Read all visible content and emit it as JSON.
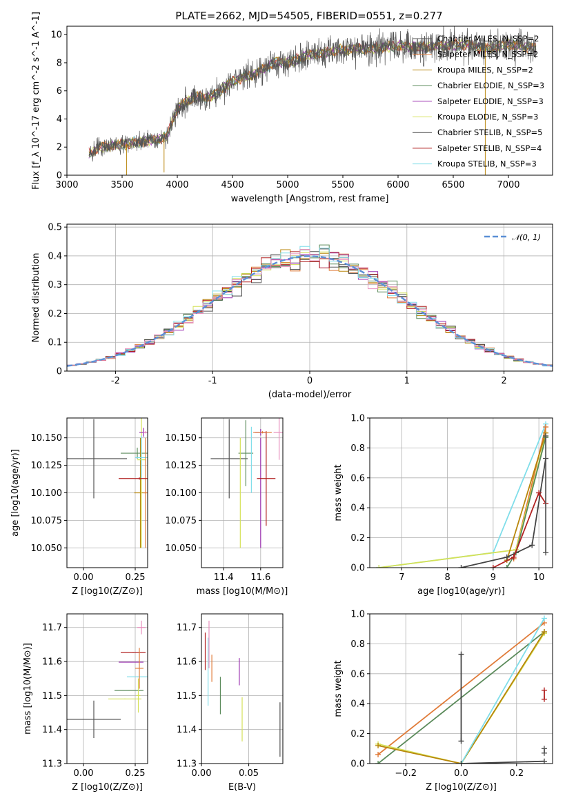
{
  "figure": {
    "title": "PLATE=2662, MJD=54505, FIBERID=0551, z=0.277"
  },
  "chart_data": [
    {
      "id": "spectrum",
      "type": "line",
      "xlabel": "wavelength [Angstrom, rest frame]",
      "ylabel": "Flux [f_λ 10^-17 erg cm^-2 s^-1 A^-1]",
      "xlim": [
        3000,
        7400
      ],
      "ylim": [
        0,
        10.6
      ],
      "xticks": [
        3000,
        3500,
        4000,
        4500,
        5000,
        5500,
        6000,
        6500,
        7000
      ],
      "yticks": [
        0,
        2,
        4,
        6,
        8,
        10
      ],
      "grid": false,
      "legend_position": "top-right",
      "data_x_range": [
        3200,
        7250
      ],
      "continuum": {
        "x": [
          3200,
          3300,
          3500,
          3700,
          3900,
          4000,
          4100,
          4200,
          4300,
          4500,
          4700,
          4900,
          5000,
          5200,
          5400,
          5600,
          5800,
          6000,
          6200,
          6400,
          6600,
          6800,
          7000,
          7250
        ],
        "y": [
          1.5,
          2.0,
          2.2,
          2.4,
          2.7,
          4.8,
          5.3,
          5.6,
          5.5,
          6.7,
          7.2,
          8.1,
          8.0,
          8.6,
          8.8,
          9.0,
          9.0,
          9.2,
          9.1,
          9.2,
          9.3,
          9.0,
          9.3,
          9.1
        ]
      },
      "series": [
        {
          "name": "Chabrier MILES, N_SSP=2",
          "color": "#555555"
        },
        {
          "name": "Salpeter MILES, N_SSP=2",
          "color": "#e07b39"
        },
        {
          "name": "Kroupa MILES, N_SSP=2",
          "color": "#b8860b"
        },
        {
          "name": "Chabrier ELODIE, N_SSP=3",
          "color": "#5a8a5a"
        },
        {
          "name": "Salpeter ELODIE, N_SSP=3",
          "color": "#9b30b0"
        },
        {
          "name": "Kroupa ELODIE, N_SSP=3",
          "color": "#d4e157"
        },
        {
          "name": "Chabrier STELIB, N_SSP=5",
          "color": "#444444"
        },
        {
          "name": "Salpeter STELIB, N_SSP=4",
          "color": "#b22222"
        },
        {
          "name": "Kroupa STELIB, N_SSP=3",
          "color": "#80deea"
        }
      ]
    },
    {
      "id": "residuals",
      "type": "histogram",
      "xlabel": "(data-model)/error",
      "ylabel": "Normed distribution",
      "xlim": [
        -2.5,
        2.5
      ],
      "ylim": [
        0,
        0.51
      ],
      "xticks": [
        -2,
        -1,
        0,
        1,
        2
      ],
      "yticks": [
        0,
        0.1,
        0.2,
        0.3,
        0.4,
        0.5
      ],
      "grid": true,
      "legend": "𝒩(0, 1)",
      "legend_position": "top-right",
      "gaussian": {
        "mean": 0,
        "sigma": 1
      },
      "bin_width": 0.1,
      "colors": [
        "#555555",
        "#e07b39",
        "#b8860b",
        "#5a8a5a",
        "#9b30b0",
        "#d4e157",
        "#444444",
        "#b22222",
        "#80deea",
        "#e88fbd"
      ]
    },
    {
      "id": "age-vs-Z",
      "type": "errorbar",
      "xlabel": "Z [log10(Z/Z⊙)]",
      "ylabel": "age  [log10(age/yr)]",
      "xlim": [
        -0.08,
        0.31
      ],
      "ylim": [
        10.032,
        10.168
      ],
      "xticks": [
        0.0,
        0.25
      ],
      "xticklabels": [
        "0.00",
        "0.25"
      ],
      "yticks": [
        10.05,
        10.075,
        10.1,
        10.125,
        10.15
      ],
      "yticklabels": [
        "10.050",
        "10.075",
        "10.100",
        "10.125",
        "10.150"
      ],
      "grid": true,
      "points": [
        {
          "x": 0.05,
          "y": 10.131,
          "xerr": 0.16,
          "yerr": 0.036,
          "color": "#555555"
        },
        {
          "x": 0.26,
          "y": 10.136,
          "xerr": 0.08,
          "yerr": 0.005,
          "color": "#5a8a5a"
        },
        {
          "x": 0.275,
          "y": 10.1,
          "xerr": 0.03,
          "yerr": 0.05,
          "color": "#b8860b"
        },
        {
          "x": 0.28,
          "y": 10.13,
          "xerr": 0.02,
          "yerr": 0.08,
          "color": "#d4e157"
        },
        {
          "x": 0.28,
          "y": 10.132,
          "xerr": 0.03,
          "yerr": 0.02,
          "color": "#80deea"
        },
        {
          "x": 0.29,
          "y": 10.155,
          "xerr": 0.02,
          "yerr": 0.004,
          "color": "#9b30b0"
        },
        {
          "x": 0.3,
          "y": 10.1,
          "xerr": 0.01,
          "yerr": 0.05,
          "color": "#e07b39"
        },
        {
          "x": 0.27,
          "y": 10.113,
          "xerr": 0.1,
          "yerr": 0.001,
          "color": "#b22222"
        },
        {
          "x": 0.3,
          "y": 10.155,
          "xerr": 0.01,
          "yerr": 0.001,
          "color": "#e88fbd"
        }
      ]
    },
    {
      "id": "age-vs-mass",
      "type": "errorbar",
      "xlabel": "mass [log10(M/M⊙)]",
      "xlim": [
        11.28,
        11.72
      ],
      "ylim": [
        10.032,
        10.168
      ],
      "xticks": [
        11.4,
        11.6
      ],
      "xticklabels": [
        "11.4",
        "11.6"
      ],
      "yticks": [
        10.05,
        10.075,
        10.1,
        10.125,
        10.15
      ],
      "yticklabels": [
        "10.050",
        "10.075",
        "10.100",
        "10.125",
        "10.150"
      ],
      "grid": true,
      "points": [
        {
          "x": 11.43,
          "y": 10.131,
          "xerr": 0.1,
          "yerr": 0.036,
          "color": "#555555"
        },
        {
          "x": 11.52,
          "y": 10.136,
          "xerr": 0.04,
          "yerr": 0.03,
          "color": "#5a8a5a"
        },
        {
          "x": 11.49,
          "y": 10.1,
          "xerr": 0.001,
          "yerr": 0.05,
          "color": "#d4e157"
        },
        {
          "x": 11.55,
          "y": 10.13,
          "xerr": 0.001,
          "yerr": 0.03,
          "color": "#80deea"
        },
        {
          "x": 11.6,
          "y": 10.155,
          "xerr": 0.03,
          "yerr": 0.003,
          "color": "#9b30b0"
        },
        {
          "x": 11.6,
          "y": 10.1,
          "xerr": 0.001,
          "yerr": 0.05,
          "color": "#9b30b0"
        },
        {
          "x": 11.63,
          "y": 10.113,
          "xerr": 0.05,
          "yerr": 0.043,
          "color": "#b22222"
        },
        {
          "x": 11.61,
          "y": 10.155,
          "xerr": 0.05,
          "yerr": 0.001,
          "color": "#e07b39"
        },
        {
          "x": 11.7,
          "y": 10.155,
          "xerr": 0.03,
          "yerr": 0.025,
          "color": "#e88fbd"
        }
      ]
    },
    {
      "id": "weight-vs-age",
      "type": "line",
      "xlabel": "age  [log10(age/yr)]",
      "ylabel": "mass weight",
      "xlim": [
        6.3,
        10.3
      ],
      "ylim": [
        0,
        1.0
      ],
      "xticks": [
        7,
        8,
        9,
        10
      ],
      "yticks": [
        0,
        0.2,
        0.4,
        0.6,
        0.8,
        1.0
      ],
      "yticklabels": [
        "0.0",
        "0.2",
        "0.4",
        "0.6",
        "0.8",
        "1.0"
      ],
      "grid": true,
      "series": [
        {
          "color": "#80deea",
          "x": [
            6.5,
            9.0,
            10.15
          ],
          "y": [
            0.0,
            0.1,
            0.96
          ]
        },
        {
          "color": "#e07b39",
          "x": [
            9.45,
            10.15
          ],
          "y": [
            0.06,
            0.94
          ]
        },
        {
          "color": "#d4e157",
          "x": [
            6.5,
            9.5,
            10.15
          ],
          "y": [
            0.0,
            0.12,
            0.88
          ]
        },
        {
          "color": "#b8860b",
          "x": [
            9.3,
            10.15
          ],
          "y": [
            0.05,
            0.9
          ]
        },
        {
          "color": "#5a8a5a",
          "x": [
            9.3,
            9.5,
            10.15
          ],
          "y": [
            0.0,
            0.1,
            0.87
          ]
        },
        {
          "color": "#444444",
          "x": [
            8.3,
            9.3,
            9.85,
            10.15
          ],
          "y": [
            0.0,
            0.07,
            0.15,
            0.73
          ]
        },
        {
          "color": "#b22222",
          "x": [
            9.0,
            9.45,
            10.0,
            10.15
          ],
          "y": [
            0.0,
            0.07,
            0.5,
            0.43
          ]
        },
        {
          "color": "#555555",
          "x": [
            10.15,
            10.15
          ],
          "y": [
            0.1,
            0.88
          ]
        }
      ]
    },
    {
      "id": "mass-vs-Z",
      "type": "errorbar",
      "xlabel": "Z [log10(Z/Z⊙)]",
      "ylabel": "mass [log10(M/M⊙)]",
      "xlim": [
        -0.08,
        0.31
      ],
      "ylim": [
        11.3,
        11.74
      ],
      "xticks": [
        0.0,
        0.25
      ],
      "xticklabels": [
        "0.00",
        "0.25"
      ],
      "yticks": [
        11.3,
        11.4,
        11.5,
        11.6,
        11.7
      ],
      "yticklabels": [
        "11.3",
        "11.4",
        "11.5",
        "11.6",
        "11.7"
      ],
      "grid": true,
      "points": [
        {
          "x": 0.05,
          "y": 11.43,
          "xerr": 0.13,
          "yerr": 0.055,
          "color": "#555555"
        },
        {
          "x": 0.2,
          "y": 11.49,
          "xerr": 0.08,
          "yerr": 0.001,
          "color": "#d4e157"
        },
        {
          "x": 0.22,
          "y": 11.515,
          "xerr": 0.07,
          "yerr": 0.001,
          "color": "#5a8a5a"
        },
        {
          "x": 0.26,
          "y": 11.555,
          "xerr": 0.05,
          "yerr": 0.001,
          "color": "#80deea"
        },
        {
          "x": 0.23,
          "y": 11.598,
          "xerr": 0.06,
          "yerr": 0.001,
          "color": "#9b30b0"
        },
        {
          "x": 0.24,
          "y": 11.627,
          "xerr": 0.06,
          "yerr": 0.001,
          "color": "#b22222"
        },
        {
          "x": 0.28,
          "y": 11.7,
          "xerr": 0.02,
          "yerr": 0.02,
          "color": "#e88fbd"
        },
        {
          "x": 0.27,
          "y": 11.58,
          "xerr": 0.02,
          "yerr": 0.06,
          "color": "#e07b39"
        },
        {
          "x": 0.265,
          "y": 11.5,
          "xerr": 0.01,
          "yerr": 0.05,
          "color": "#d4e157"
        }
      ]
    },
    {
      "id": "mass-vs-EBV",
      "type": "errorbar",
      "xlabel": "E(B-V)",
      "xlim": [
        0.0,
        0.086
      ],
      "ylim": [
        11.3,
        11.74
      ],
      "xticks": [
        0.0,
        0.05
      ],
      "xticklabels": [
        "0.00",
        "0.05"
      ],
      "yticks": [
        11.3,
        11.4,
        11.5,
        11.6,
        11.7
      ],
      "yticklabels": [
        "11.3",
        "11.4",
        "11.5",
        "11.6",
        "11.7"
      ],
      "grid": true,
      "points": [
        {
          "x": 0.004,
          "y": 11.63,
          "xerr": 0,
          "yerr": 0.055,
          "color": "#b22222"
        },
        {
          "x": 0.007,
          "y": 11.57,
          "xerr": 0,
          "yerr": 0.1,
          "color": "#80deea"
        },
        {
          "x": 0.008,
          "y": 11.65,
          "xerr": 0,
          "yerr": 0.07,
          "color": "#e88fbd"
        },
        {
          "x": 0.011,
          "y": 11.58,
          "xerr": 0,
          "yerr": 0.04,
          "color": "#e07b39"
        },
        {
          "x": 0.02,
          "y": 11.5,
          "xerr": 0,
          "yerr": 0.055,
          "color": "#5a8a5a"
        },
        {
          "x": 0.04,
          "y": 11.57,
          "xerr": 0,
          "yerr": 0.04,
          "color": "#9b30b0"
        },
        {
          "x": 0.043,
          "y": 11.43,
          "xerr": 0,
          "yerr": 0.065,
          "color": "#d4e157"
        },
        {
          "x": 0.083,
          "y": 11.4,
          "xerr": 0,
          "yerr": 0.08,
          "color": "#555555"
        }
      ]
    },
    {
      "id": "weight-vs-Z",
      "type": "line",
      "xlabel": "Z [log10(Z/Z⊙)]",
      "ylabel": "mass weight",
      "xlim": [
        -0.33,
        0.33
      ],
      "ylim": [
        0,
        1.0
      ],
      "xticks": [
        -0.2,
        0.0,
        0.2
      ],
      "xticklabels": [
        "−0.2",
        "0.0",
        "0.2"
      ],
      "yticks": [
        0,
        0.2,
        0.4,
        0.6,
        0.8,
        1.0
      ],
      "yticklabels": [
        "0.0",
        "0.2",
        "0.4",
        "0.6",
        "0.8",
        "1.0"
      ],
      "grid": true,
      "series": [
        {
          "color": "#e07b39",
          "x": [
            -0.3,
            0.3
          ],
          "y": [
            0.06,
            0.94
          ]
        },
        {
          "color": "#5a8a5a",
          "x": [
            -0.3,
            0.3
          ],
          "y": [
            0.0,
            0.88
          ]
        },
        {
          "color": "#d4e157",
          "x": [
            -0.3,
            0.0,
            0.3
          ],
          "y": [
            0.13,
            0.0,
            0.87
          ]
        },
        {
          "color": "#b8860b",
          "x": [
            -0.3,
            0.0,
            0.3
          ],
          "y": [
            0.12,
            0.0,
            0.88
          ]
        },
        {
          "color": "#80deea",
          "x": [
            0.0,
            0.3
          ],
          "y": [
            0.0,
            0.97
          ]
        },
        {
          "color": "#444444",
          "x": [
            0.0,
            0.3
          ],
          "y": [
            0.0,
            0.015
          ]
        },
        {
          "color": "#444444",
          "x": [
            0.0,
            0.0
          ],
          "y": [
            0.15,
            0.73
          ]
        },
        {
          "color": "#b22222",
          "x": [
            0.3,
            0.3
          ],
          "y": [
            0.43,
            0.49
          ]
        },
        {
          "color": "#555555",
          "x": [
            0.3,
            0.3
          ],
          "y": [
            0.1,
            0.07
          ]
        }
      ]
    }
  ]
}
